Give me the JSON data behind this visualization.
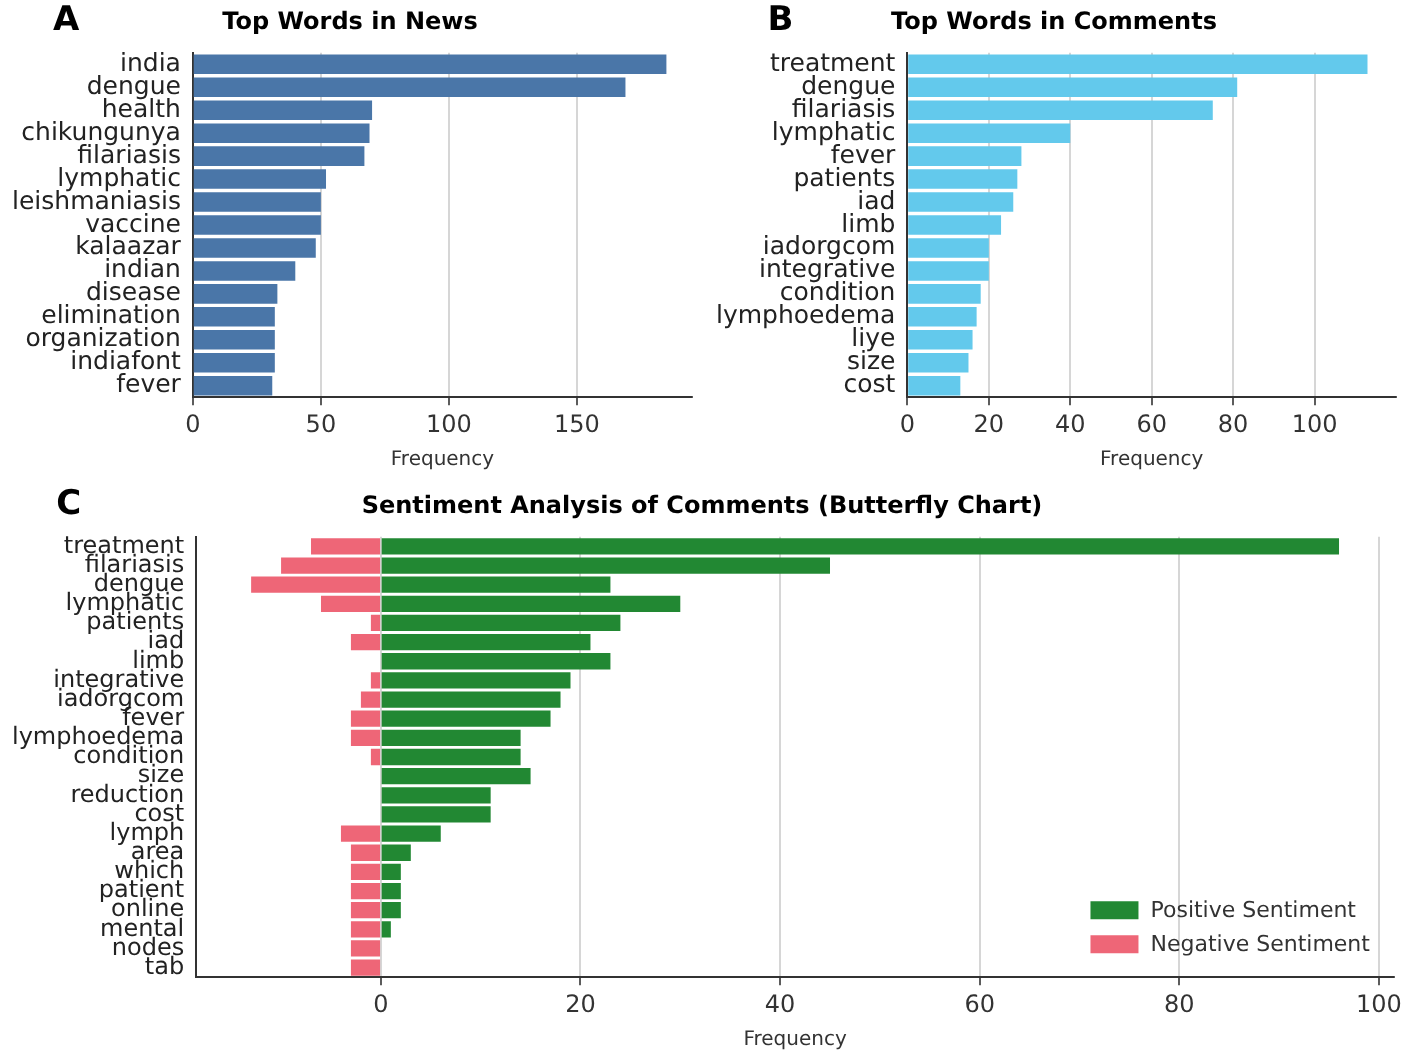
{
  "chart_data": [
    {
      "type": "bar",
      "orientation": "horizontal",
      "title": "Top Words in News",
      "xlabel": "Frequency",
      "annotations": [
        "A"
      ],
      "categories": [
        "india",
        "dengue",
        "health",
        "chikungunya",
        "filariasis",
        "lymphatic",
        "leishmaniasis",
        "vaccine",
        "kalaazar",
        "indian",
        "disease",
        "elimination",
        "organization",
        "indiafont",
        "fever"
      ],
      "values": [
        185,
        169,
        70,
        69,
        67,
        52,
        50,
        50,
        48,
        40,
        33,
        32,
        32,
        32,
        31
      ],
      "color": "#4a76a8",
      "xlim": [
        0,
        195
      ],
      "xticks": [
        0,
        50,
        100,
        150
      ],
      "grid": "x",
      "legend": false
    },
    {
      "type": "bar",
      "orientation": "horizontal",
      "title": "Top Words in Comments",
      "xlabel": "Frequency",
      "annotations": [
        "B"
      ],
      "categories": [
        "treatment",
        "dengue",
        "filariasis",
        "lymphatic",
        "fever",
        "patients",
        "iad",
        "limb",
        "iadorgcom",
        "integrative",
        "condition",
        "lymphoedema",
        "liye",
        "size",
        "cost"
      ],
      "values": [
        113,
        81,
        75,
        40,
        28,
        27,
        26,
        23,
        20,
        20,
        18,
        17,
        16,
        15,
        13
      ],
      "color": "#63c9ec",
      "xlim": [
        0,
        120
      ],
      "xticks": [
        0,
        20,
        40,
        60,
        80,
        100
      ],
      "grid": "x",
      "legend": false
    },
    {
      "type": "bar",
      "orientation": "horizontal",
      "stacked": true,
      "title": "Sentiment Analysis of Comments (Butterfly Chart)",
      "xlabel": "Frequency",
      "annotations": [
        "C"
      ],
      "categories": [
        "treatment",
        "filariasis",
        "dengue",
        "lymphatic",
        "patients",
        "iad",
        "limb",
        "integrative",
        "iadorgcom",
        "fever",
        "lymphoedema",
        "condition",
        "size",
        "reduction",
        "cost",
        "lymph",
        "area",
        "which",
        "patient",
        "online",
        "mental",
        "nodes",
        "tab"
      ],
      "series": [
        {
          "name": "Positive Sentiment",
          "color": "#228833",
          "values": [
            96,
            45,
            23,
            30,
            24,
            21,
            23,
            19,
            18,
            17,
            14,
            14,
            15,
            11,
            11,
            6,
            3,
            2,
            2,
            2,
            1,
            0,
            0
          ]
        },
        {
          "name": "Negative Sentiment",
          "color": "#ee6677",
          "values": [
            -7,
            -10,
            -13,
            -6,
            -1,
            -3,
            0,
            -1,
            -2,
            -3,
            -3,
            -1,
            0,
            0,
            0,
            -4,
            -3,
            -3,
            -3,
            -3,
            -3,
            -3,
            -3
          ]
        }
      ],
      "xlim": [
        -18.5,
        101.5
      ],
      "xticks": [
        0,
        20,
        40,
        60,
        80,
        100
      ],
      "grid": "x",
      "legend": "bottom right"
    }
  ]
}
